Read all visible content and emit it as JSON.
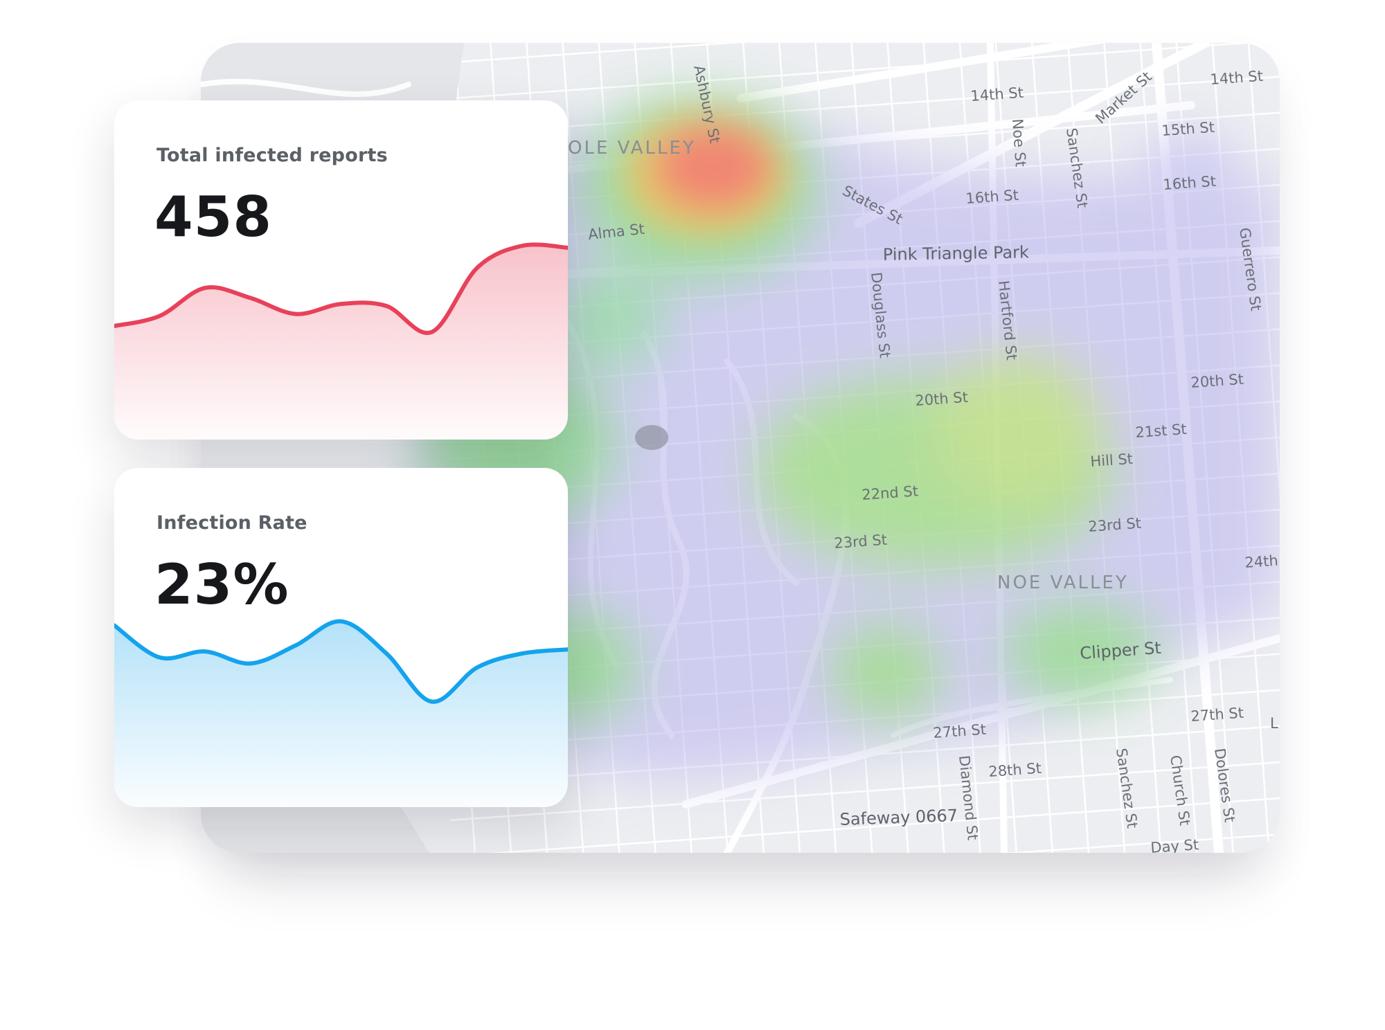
{
  "map": {
    "neighborhoods": [
      "OLE VALLEY",
      "NOE VALLEY"
    ],
    "streets": [
      "Ashbury St",
      "14th St",
      "Market St",
      "14th St",
      "Noe St",
      "Sanchez St",
      "15th St",
      "States St",
      "16th St",
      "16th St",
      "Alma St",
      "Pink Triangle Park",
      "Douglass St",
      "Hartford St",
      "Guerrero St",
      "20th St",
      "20th St",
      "21st St",
      "Hill St",
      "22nd St",
      "23rd St",
      "23rd St",
      "24th",
      "Clipper St",
      "27th St",
      "27th St",
      "28th St",
      "Diamond St",
      "Sanchez St",
      "Church St",
      "Dolores St",
      "Safeway 0667",
      "Day St",
      "L"
    ]
  },
  "stats": [
    {
      "title": "Total infected reports",
      "value": "458",
      "color": "#e8415a",
      "chart_data": {
        "type": "area",
        "x": [
          0,
          1,
          2,
          3,
          4,
          5,
          6,
          7,
          8,
          9,
          10
        ],
        "values": [
          20,
          30,
          58,
          48,
          32,
          42,
          40,
          14,
          78,
          100,
          98
        ],
        "ylim": [
          0,
          100
        ]
      }
    },
    {
      "title": "Infection Rate",
      "value": "23%",
      "color": "#14a3ec",
      "chart_data": {
        "type": "area",
        "x": [
          0,
          1,
          2,
          3,
          4,
          5,
          6,
          7,
          8,
          9,
          10
        ],
        "values": [
          88,
          56,
          62,
          50,
          68,
          92,
          60,
          12,
          46,
          60,
          64
        ],
        "ylim": [
          0,
          100
        ]
      }
    }
  ]
}
